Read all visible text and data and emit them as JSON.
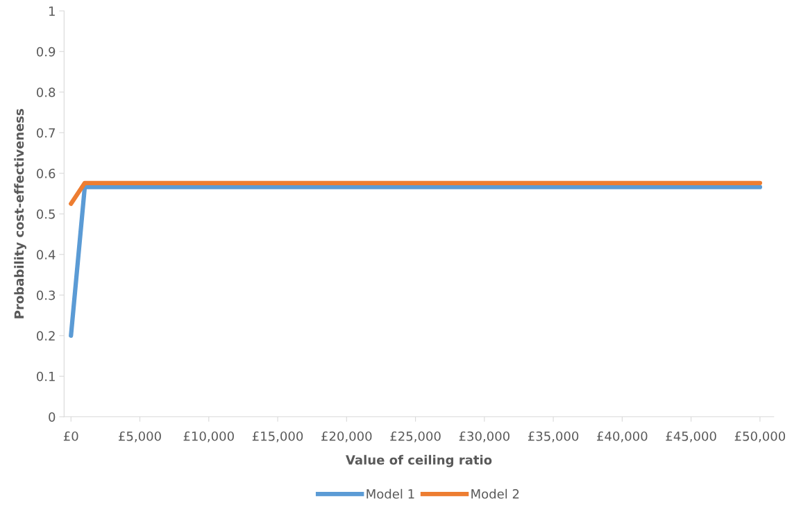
{
  "chart_data": {
    "type": "line",
    "xlabel": "Value of ceiling ratio",
    "ylabel": "Probability cost-effectiveness",
    "x": [
      0,
      1000,
      50000
    ],
    "series": [
      {
        "name": "Model 1",
        "color": "#5b9bd5",
        "values": [
          0.2,
          0.566,
          0.566
        ]
      },
      {
        "name": "Model 2",
        "color": "#ed7d31",
        "values": [
          0.525,
          0.576,
          0.576
        ]
      }
    ],
    "xlim": [
      -500,
      51000
    ],
    "xticks": [
      {
        "value": 0,
        "label": "£0"
      },
      {
        "value": 5000,
        "label": "£5,000"
      },
      {
        "value": 10000,
        "label": "£10,000"
      },
      {
        "value": 15000,
        "label": "£15,000"
      },
      {
        "value": 20000,
        "label": "£20,000"
      },
      {
        "value": 25000,
        "label": "£25,000"
      },
      {
        "value": 30000,
        "label": "£30,000"
      },
      {
        "value": 35000,
        "label": "£35,000"
      },
      {
        "value": 40000,
        "label": "£40,000"
      },
      {
        "value": 45000,
        "label": "£45,000"
      },
      {
        "value": 50000,
        "label": "£50,000"
      }
    ],
    "ylim": [
      0,
      1
    ],
    "yticks": [
      0,
      0.1,
      0.2,
      0.3,
      0.4,
      0.5,
      0.6,
      0.7,
      0.8,
      0.9,
      1
    ],
    "grid": false,
    "legend": "bottom",
    "marker": "none",
    "line_style": "solid"
  }
}
